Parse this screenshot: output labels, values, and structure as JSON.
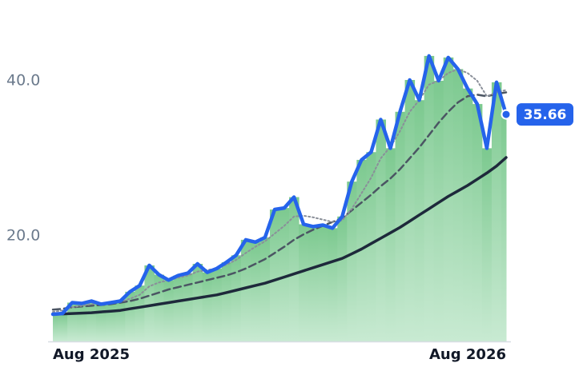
{
  "chart_data": {
    "type": "line",
    "categories": [
      "Aug 2025",
      null,
      null,
      null,
      null,
      null,
      null,
      null,
      null,
      null,
      null,
      null,
      null,
      null,
      null,
      null,
      null,
      null,
      null,
      null,
      null,
      null,
      null,
      null,
      null,
      null,
      null,
      null,
      null,
      null,
      null,
      null,
      null,
      null,
      null,
      null,
      null,
      null,
      null,
      null,
      null,
      null,
      null,
      null,
      null,
      null,
      null,
      "Aug 2026"
    ],
    "series": [
      {
        "color": "#2563eb",
        "style": "solid",
        "fill": "#7cc98f",
        "last_label": true,
        "values": [
          9.9,
          10.0,
          11.4,
          11.3,
          11.6,
          11.2,
          11.4,
          11.6,
          12.8,
          13.6,
          16.2,
          15.0,
          14.3,
          14.9,
          15.2,
          16.4,
          15.3,
          15.8,
          16.6,
          17.5,
          19.5,
          19.2,
          19.8,
          23.4,
          23.6,
          25.0,
          21.5,
          21.2,
          21.4,
          21.0,
          22.5,
          27.0,
          29.8,
          30.8,
          35.0,
          31.3,
          36.0,
          40.1,
          37.5,
          43.2,
          40.0,
          43.0,
          41.5,
          39.0,
          37.0,
          31.3,
          39.8,
          35.66
        ]
      },
      {
        "color": "#8a8f99",
        "style": "dotted",
        "values": [
          10.2,
          10.4,
          10.8,
          11.0,
          11.2,
          11.3,
          11.4,
          11.5,
          11.9,
          12.4,
          13.5,
          14.0,
          14.3,
          14.6,
          14.9,
          15.4,
          15.6,
          15.8,
          16.3,
          16.9,
          17.8,
          18.6,
          19.3,
          20.3,
          21.3,
          22.5,
          22.6,
          22.4,
          22.1,
          21.8,
          22.0,
          23.5,
          25.5,
          27.5,
          30.0,
          31.5,
          33.5,
          36.0,
          37.5,
          39.5,
          40.0,
          41.0,
          41.5,
          41.0,
          40.0,
          38.0,
          38.5,
          38.8
        ]
      },
      {
        "color": "#4b5563",
        "style": "dashed",
        "values": [
          10.5,
          10.6,
          10.8,
          10.9,
          11.0,
          11.1,
          11.2,
          11.4,
          11.6,
          11.9,
          12.3,
          12.7,
          13.1,
          13.4,
          13.7,
          14.0,
          14.3,
          14.6,
          14.9,
          15.3,
          15.8,
          16.4,
          17.0,
          17.8,
          18.6,
          19.5,
          20.2,
          20.8,
          21.3,
          21.8,
          22.3,
          23.3,
          24.3,
          25.3,
          26.4,
          27.4,
          28.6,
          30.0,
          31.4,
          33.0,
          34.6,
          36.0,
          37.2,
          38.0,
          38.2,
          38.0,
          38.3,
          38.5
        ]
      },
      {
        "color": "#1e293b",
        "style": "solid",
        "values": [
          9.9,
          9.95,
          10.0,
          10.05,
          10.1,
          10.2,
          10.3,
          10.4,
          10.6,
          10.8,
          11.0,
          11.2,
          11.4,
          11.6,
          11.8,
          12.0,
          12.2,
          12.4,
          12.7,
          13.0,
          13.3,
          13.6,
          13.9,
          14.3,
          14.7,
          15.1,
          15.5,
          15.9,
          16.3,
          16.7,
          17.1,
          17.7,
          18.3,
          19.0,
          19.7,
          20.4,
          21.1,
          21.9,
          22.7,
          23.5,
          24.3,
          25.1,
          25.8,
          26.5,
          27.3,
          28.1,
          29.0,
          30.1
        ]
      }
    ],
    "ylim": [
      6.4,
      46.8
    ],
    "yticks": [
      {
        "value": 20,
        "label": "20.0"
      },
      {
        "value": 40,
        "label": "40.0"
      }
    ]
  }
}
